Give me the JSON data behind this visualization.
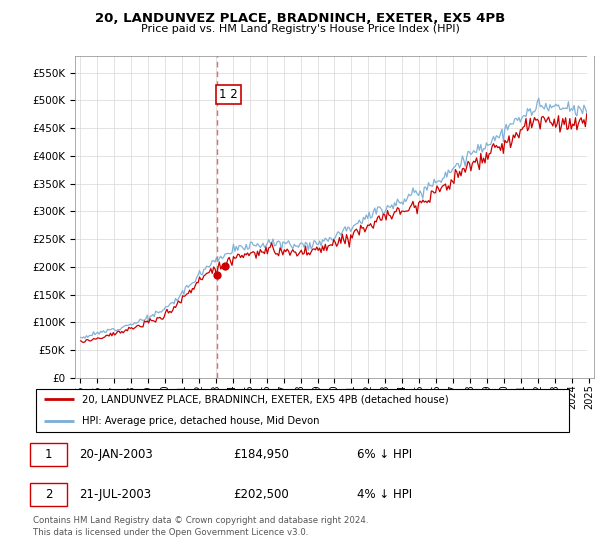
{
  "title": "20, LANDUNVEZ PLACE, BRADNINCH, EXETER, EX5 4PB",
  "subtitle": "Price paid vs. HM Land Registry's House Price Index (HPI)",
  "legend_line1": "20, LANDUNVEZ PLACE, BRADNINCH, EXETER, EX5 4PB (detached house)",
  "legend_line2": "HPI: Average price, detached house, Mid Devon",
  "transaction1_date": "20-JAN-2003",
  "transaction1_price": "£184,950",
  "transaction1_hpi": "6% ↓ HPI",
  "transaction2_date": "21-JUL-2003",
  "transaction2_price": "£202,500",
  "transaction2_hpi": "4% ↓ HPI",
  "footer": "Contains HM Land Registry data © Crown copyright and database right 2024.\nThis data is licensed under the Open Government Licence v3.0.",
  "hpi_color": "#7aaed6",
  "price_color": "#cc0000",
  "vline_color": "#ee6666",
  "box_color": "#cc0000",
  "ylim_min": 0,
  "ylim_max": 580000,
  "yticks": [
    0,
    50000,
    100000,
    150000,
    200000,
    250000,
    300000,
    350000,
    400000,
    450000,
    500000,
    550000
  ],
  "transaction1_x": 2003.05,
  "transaction1_y": 184950,
  "transaction2_x": 2003.55,
  "transaction2_y": 202500,
  "xmin": 1994.7,
  "xmax": 2025.3
}
